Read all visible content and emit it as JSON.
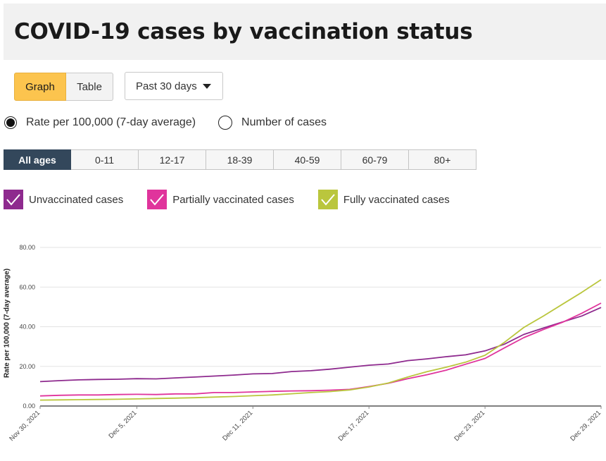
{
  "title": "COVID-19 cases by vaccination status",
  "view_toggle": {
    "graph": "Graph",
    "table": "Table",
    "active": "graph"
  },
  "range_select": {
    "value": "Past 30 days"
  },
  "measure": {
    "options": [
      "Rate per 100,000 (7-day average)",
      "Number of cases"
    ],
    "selected": 0
  },
  "age_tabs": [
    "All ages",
    "0-11",
    "12-17",
    "18-39",
    "40-59",
    "60-79",
    "80+"
  ],
  "age_selected": 0,
  "legend": [
    {
      "label": "Unvaccinated cases",
      "color": "#8e2a8e",
      "checked": true
    },
    {
      "label": "Partially vaccinated cases",
      "color": "#e0349c",
      "checked": true
    },
    {
      "label": "Fully vaccinated cases",
      "color": "#bac63d",
      "checked": true
    }
  ],
  "chart_data": {
    "type": "line",
    "ylabel": "Rate per 100,000 (7-day average)",
    "xlabel": "",
    "ylim": [
      0,
      80
    ],
    "yticks": [
      "0.00",
      "20.00",
      "40.00",
      "60.00",
      "80.00"
    ],
    "xticks": [
      {
        "label": "Nov 30, 2021",
        "index": 0
      },
      {
        "label": "Dec 5, 2021",
        "index": 5
      },
      {
        "label": "Dec 11, 2021",
        "index": 11
      },
      {
        "label": "Dec 17, 2021",
        "index": 17
      },
      {
        "label": "Dec 23, 2021",
        "index": 23
      },
      {
        "label": "Dec 29, 2021",
        "index": 29
      }
    ],
    "x": [
      "Nov 30",
      "Dec 1",
      "Dec 2",
      "Dec 3",
      "Dec 4",
      "Dec 5",
      "Dec 6",
      "Dec 7",
      "Dec 8",
      "Dec 9",
      "Dec 10",
      "Dec 11",
      "Dec 12",
      "Dec 13",
      "Dec 14",
      "Dec 15",
      "Dec 16",
      "Dec 17",
      "Dec 18",
      "Dec 19",
      "Dec 20",
      "Dec 21",
      "Dec 22",
      "Dec 23",
      "Dec 24",
      "Dec 25",
      "Dec 26",
      "Dec 27",
      "Dec 28",
      "Dec 29"
    ],
    "grid": true,
    "series": [
      {
        "name": "Unvaccinated cases",
        "color": "#8e2a8e",
        "values": [
          12.3,
          12.8,
          13.2,
          13.4,
          13.5,
          13.8,
          13.7,
          14.2,
          14.6,
          15.1,
          15.6,
          16.2,
          16.4,
          17.4,
          17.8,
          18.6,
          19.6,
          20.6,
          21.2,
          22.9,
          23.8,
          24.9,
          25.8,
          27.8,
          31.2,
          36.1,
          39.3,
          42.4,
          45.4,
          49.7
        ]
      },
      {
        "name": "Partially vaccinated cases",
        "color": "#e0349c",
        "values": [
          5.1,
          5.4,
          5.6,
          5.6,
          5.8,
          5.9,
          5.8,
          6.1,
          6.1,
          6.8,
          6.8,
          7.1,
          7.4,
          7.6,
          7.7,
          8.0,
          8.4,
          9.8,
          11.5,
          13.8,
          15.8,
          18.1,
          21.1,
          24.0,
          29.3,
          34.5,
          38.5,
          42.2,
          46.8,
          51.9
        ]
      },
      {
        "name": "Fully vaccinated cases",
        "color": "#bac63d",
        "values": [
          3.0,
          3.1,
          3.2,
          3.3,
          3.4,
          3.6,
          3.8,
          4.0,
          4.2,
          4.5,
          4.8,
          5.2,
          5.6,
          6.2,
          6.8,
          7.3,
          8.1,
          9.6,
          11.6,
          14.6,
          17.3,
          19.6,
          22.1,
          25.6,
          32.1,
          39.6,
          45.3,
          51.3,
          57.3,
          63.7
        ]
      }
    ]
  }
}
